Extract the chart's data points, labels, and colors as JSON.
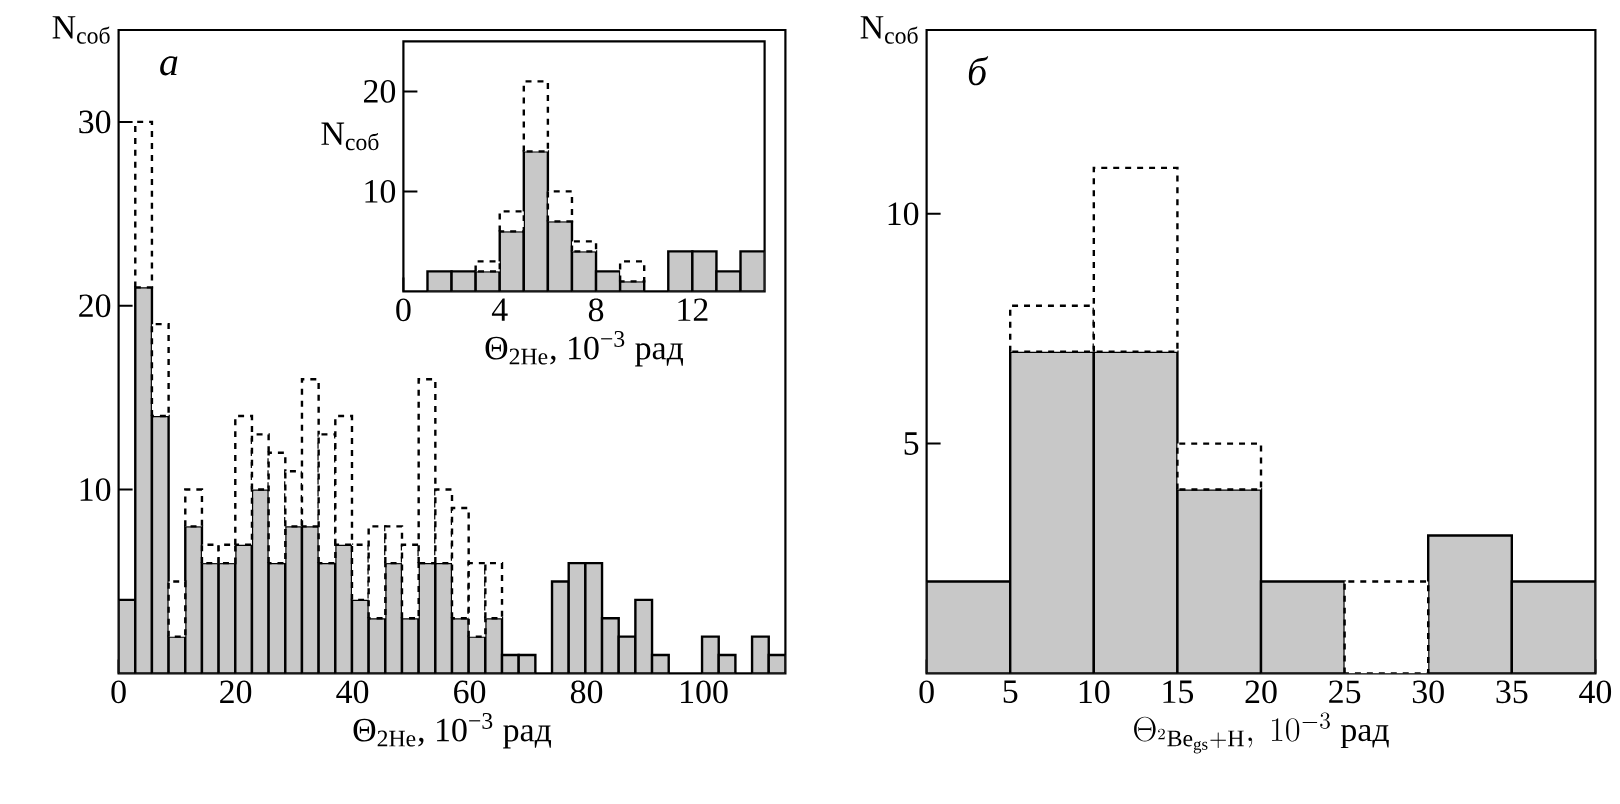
{
  "chart_data": [
    {
      "type": "bar",
      "stacked": true,
      "xlabel": "Θ$_{2He}$, 10$^{−3}$ рад",
      "ylabel": "N$_{соб}$",
      "annotations": [
        "а"
      ],
      "x": [
        1.425,
        4.275,
        7.125,
        9.975,
        12.825,
        15.675,
        18.525,
        21.375,
        24.225,
        27.075,
        29.925,
        32.775,
        35.625,
        38.475,
        41.325,
        44.175,
        47.025,
        49.875,
        52.725,
        55.575,
        58.425,
        61.275,
        64.125,
        66.975,
        69.825,
        72.675,
        75.525,
        78.375,
        81.225,
        84.075,
        86.925,
        89.775,
        92.625,
        95.475,
        98.325,
        101.175,
        104.025,
        106.875,
        109.725,
        112.575
      ],
      "series": [
        {
          "color": "#c8c8c8",
          "line_style": "solid",
          "values": [
            4,
            21,
            14,
            2,
            8,
            6,
            6,
            7,
            10,
            6,
            8,
            8,
            6,
            7,
            4,
            3,
            6,
            3,
            6,
            6,
            3,
            2,
            3,
            1,
            1,
            0,
            5,
            6,
            6,
            3,
            2,
            4,
            1,
            0,
            0,
            2,
            1,
            0,
            2,
            1
          ]
        },
        {
          "color": "#ffffff",
          "line_style": "dashed",
          "values": [
            0,
            9,
            5,
            3,
            2,
            1,
            1,
            7,
            3,
            6,
            3,
            8,
            7,
            7,
            3,
            5,
            2,
            4,
            10,
            4,
            6,
            4,
            3,
            0,
            0,
            0,
            0,
            0,
            0,
            0,
            0,
            0,
            0,
            0,
            0,
            0,
            0,
            0,
            0,
            0
          ]
        }
      ],
      "xlim": [
        0,
        114
      ],
      "ylim": [
        0,
        35
      ],
      "xticks": [
        0,
        20,
        40,
        60,
        80,
        100
      ],
      "yticks": [
        10,
        20,
        30
      ]
    },
    {
      "type": "bar",
      "stacked": true,
      "xlabel": "Θ$_{2He}$, 10$^{−3}$ рад",
      "ylabel": "N$_{соб}$",
      "x": [
        1.5,
        2.5,
        3.5,
        4.5,
        5.5,
        6.5,
        7.5,
        8.5,
        9.5,
        10.5,
        11.5,
        12.5,
        13.5,
        14.5
      ],
      "series": [
        {
          "color": "#c8c8c8",
          "line_style": "solid",
          "values": [
            2,
            2,
            2,
            6,
            14,
            7,
            4,
            2,
            1,
            0,
            4,
            4,
            2,
            4
          ]
        },
        {
          "color": "#ffffff",
          "line_style": "dashed",
          "values": [
            0,
            0,
            1,
            2,
            7,
            3,
            1,
            0,
            2,
            0,
            0,
            0,
            0,
            0
          ]
        }
      ],
      "xlim": [
        0,
        15
      ],
      "ylim": [
        0,
        25
      ],
      "xticks": [
        0,
        4,
        8,
        12
      ],
      "yticks": [
        10,
        20
      ]
    },
    {
      "type": "bar",
      "stacked": true,
      "xlabel": "\\Theta_{{}^{2}\\mathrm{Be}_{\\mathrm{gs}}+\\mathrm{H}},\\ 10^{-3}\\ \\mbox{рад}",
      "ylabel": "N$_{соб}$",
      "annotations": [
        "б"
      ],
      "x": [
        2.5,
        7.5,
        12.5,
        17.5,
        22.5,
        27.5,
        32.5,
        37.5
      ],
      "series": [
        {
          "color": "#c8c8c8",
          "line_style": "solid",
          "values": [
            2,
            7,
            7,
            4,
            2,
            0,
            3,
            2
          ]
        },
        {
          "color": "#ffffff",
          "line_style": "dashed",
          "values": [
            0,
            1,
            4,
            1,
            0,
            2,
            0,
            0
          ]
        }
      ],
      "xlim": [
        0,
        40
      ],
      "ylim": [
        0,
        14
      ],
      "xticks": [
        0,
        5,
        10,
        15,
        20,
        25,
        30,
        35,
        40
      ],
      "yticks": [
        5,
        10
      ]
    }
  ]
}
